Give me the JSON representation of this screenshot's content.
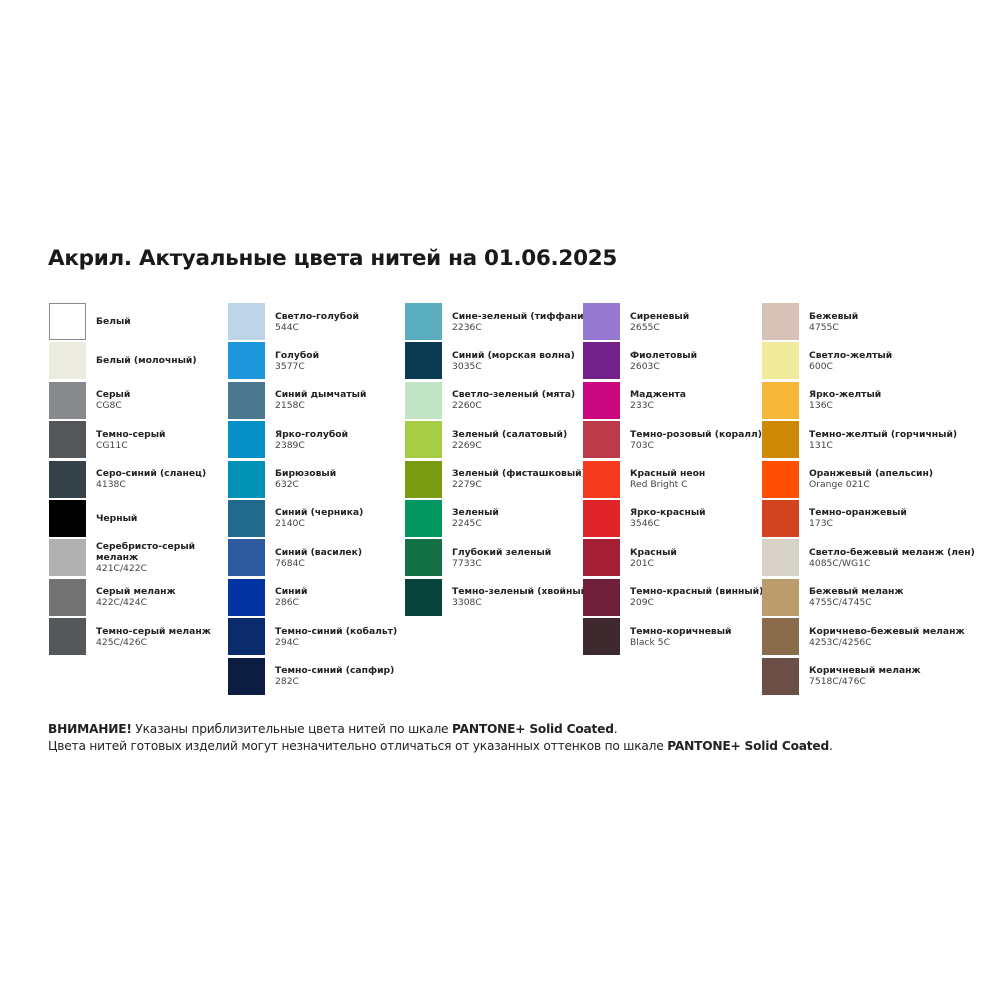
{
  "title": "Акрил. Актуальные цвета нитей на 01.06.2025",
  "columns": [
    [
      {
        "name": "Белый",
        "code": "",
        "color": "#ffffff"
      },
      {
        "name": "Белый (молочный)",
        "code": "",
        "color": "#ecebe0"
      },
      {
        "name": "Серый",
        "code": "CG8C",
        "color": "#88898d"
      },
      {
        "name": "Темно-серый",
        "code": "CG11C",
        "color": "#54565a"
      },
      {
        "name": "Серо-синий (сланец)",
        "code": "4138C",
        "color": "#36424a"
      },
      {
        "name": "Черный",
        "code": "",
        "color": "#000000"
      },
      {
        "name": "Серебристо-серый меланж",
        "code": "421C/422C",
        "color": "#b0b1b0"
      },
      {
        "name": "Серый меланж",
        "code": "422C/424C",
        "color": "#717271"
      },
      {
        "name": "Темно-серый меланж",
        "code": "425C/426C",
        "color": "#54585b"
      }
    ],
    [
      {
        "name": "Светло-голубой",
        "code": "544C",
        "color": "#bed4e7"
      },
      {
        "name": "Голубой",
        "code": "3577C",
        "color": "#1e96dc"
      },
      {
        "name": "Синий дымчатый",
        "code": "2158C",
        "color": "#4c788f"
      },
      {
        "name": "Ярко-голубой",
        "code": "2389C",
        "color": "#0590c6"
      },
      {
        "name": "Бирюзовый",
        "code": "632C",
        "color": "#0192b5"
      },
      {
        "name": "Синий (черника)",
        "code": "2140C",
        "color": "#226a8d"
      },
      {
        "name": "Синий (василек)",
        "code": "7684C",
        "color": "#2e5b9f"
      },
      {
        "name": "Синий",
        "code": "286C",
        "color": "#0433a4"
      },
      {
        "name": "Темно-синий (кобальт)",
        "code": "294C",
        "color": "#0b2c6c"
      },
      {
        "name": "Темно-синий (сапфир)",
        "code": "282C",
        "color": "#0d1c42"
      }
    ],
    [
      {
        "name": "Сине-зеленый (тиффани)",
        "code": "2236C",
        "color": "#5aaebd"
      },
      {
        "name": "Синий (морская волна)",
        "code": "3035C",
        "color": "#0b3a52"
      },
      {
        "name": "Светло-зеленый (мята)",
        "code": "2260C",
        "color": "#c1e3c6"
      },
      {
        "name": "Зеленый (салатовый)",
        "code": "2269C",
        "color": "#a6cd45"
      },
      {
        "name": "Зеленый (фисташковый)",
        "code": "2279C",
        "color": "#789b12"
      },
      {
        "name": "Зеленый",
        "code": "2245C",
        "color": "#029660"
      },
      {
        "name": "Глубокий зеленый",
        "code": "7733C",
        "color": "#137145"
      },
      {
        "name": "Темно-зеленый (хвойный)",
        "code": "3308C",
        "color": "#08443a"
      }
    ],
    [
      {
        "name": "Сиреневый",
        "code": "2655C",
        "color": "#9679d2"
      },
      {
        "name": "Фиолетовый",
        "code": "2603C",
        "color": "#72208a"
      },
      {
        "name": "Маджента",
        "code": "233C",
        "color": "#c9087f"
      },
      {
        "name": "Темно-розовый (коралл)",
        "code": "703C",
        "color": "#bd3a4b"
      },
      {
        "name": "Красный неон",
        "code": "Red Bright C",
        "color": "#f53a1e"
      },
      {
        "name": "Ярко-красный",
        "code": "3546C",
        "color": "#df2528"
      },
      {
        "name": "Красный",
        "code": "201C",
        "color": "#a41e35"
      },
      {
        "name": "Темно-красный (винный)",
        "code": "209C",
        "color": "#70203a"
      },
      {
        "name": "Темно-коричневый",
        "code": "Black 5C",
        "color": "#3e2a2e"
      }
    ],
    [
      {
        "name": "Бежевый",
        "code": "4755C",
        "color": "#d8c1b6"
      },
      {
        "name": "Светло-желтый",
        "code": "600C",
        "color": "#f1eb9c"
      },
      {
        "name": "Ярко-желтый",
        "code": "136C",
        "color": "#f7b83a"
      },
      {
        "name": "Темно-желтый (горчичный)",
        "code": "131C",
        "color": "#ce8a07"
      },
      {
        "name": "Оранжевый (апельсин)",
        "code": "Orange 021C",
        "color": "#fd5003"
      },
      {
        "name": "Темно-оранжевый",
        "code": "173C",
        "color": "#d2441f"
      },
      {
        "name": "Светло-бежевый меланж (лен)",
        "code": "4085C/WG1C",
        "color": "#d6d2c8"
      },
      {
        "name": "Бежевый меланж",
        "code": "4755C/4745C",
        "color": "#bc9c6c"
      },
      {
        "name": "Коричнево-бежевый меланж",
        "code": "4253C/4256C",
        "color": "#8a6c4c"
      },
      {
        "name": "Коричневый меланж",
        "code": "7518C/476C",
        "color": "#6b4e46"
      }
    ]
  ],
  "footer": {
    "line1_bold": "ВНИМАНИЕ!",
    "line1_text": " Указаны приблизительные цвета нитей по шкале ",
    "line1_brand": "PANTONE+ Solid Coated",
    "line1_end": ".",
    "line2_text": "Цвета нитей готовых изделий могут незначительно отличаться от указанных оттенков по шкале ",
    "line2_brand": "PANTONE+ Solid Coated",
    "line2_end": "."
  }
}
